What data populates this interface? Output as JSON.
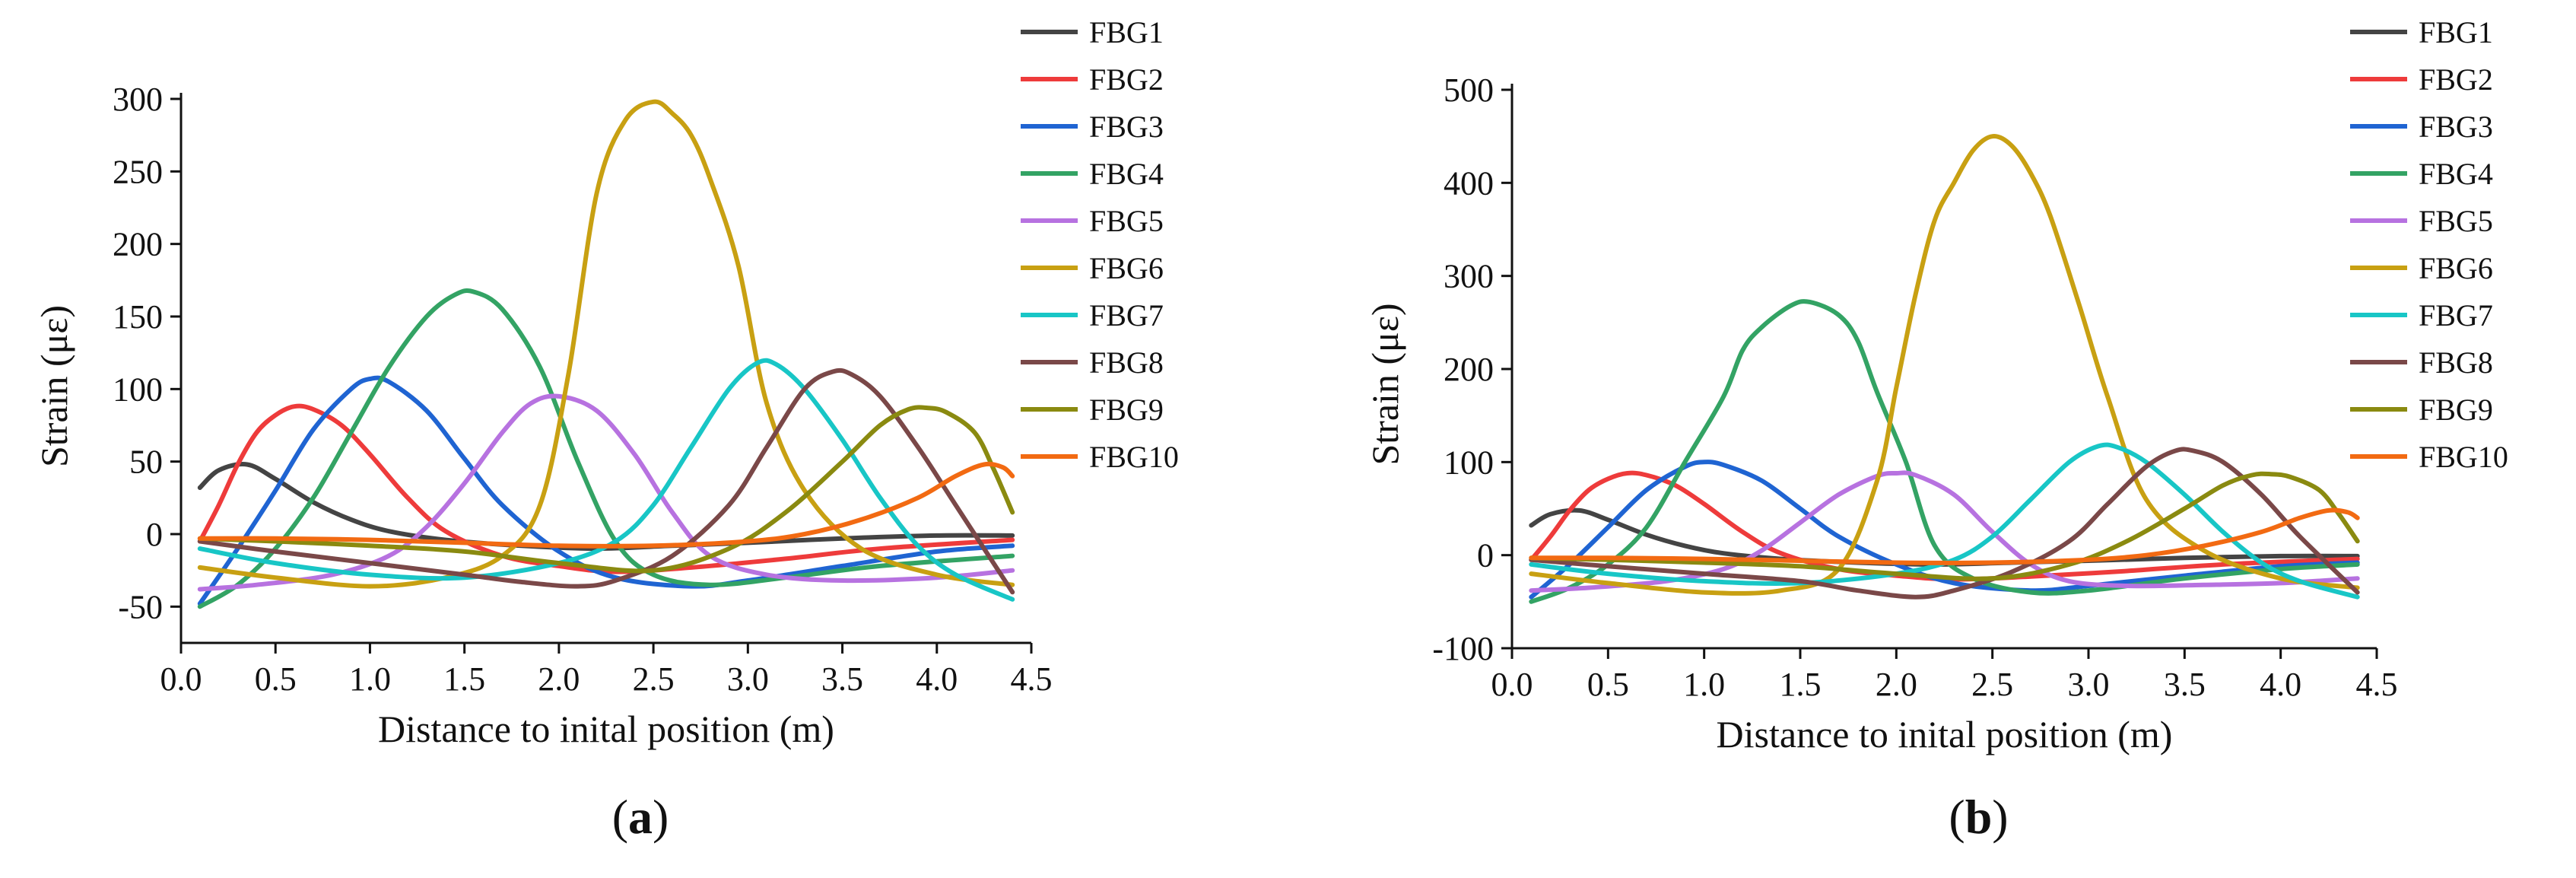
{
  "colors": {
    "FBG1": "#444444",
    "FBG2": "#ee3b3b",
    "FBG3": "#1f64d2",
    "FBG4": "#33a364",
    "FBG5": "#b772e0",
    "FBG6": "#c8a012",
    "FBG7": "#18c6c6",
    "FBG8": "#7a4848",
    "FBG9": "#8a8a10",
    "FBG10": "#f26a12"
  },
  "chart_data": [
    {
      "type": "line",
      "caption": "a",
      "xlabel": "Distance to inital position (m)",
      "ylabel": "Strain (με)",
      "xlim": [
        0.0,
        4.5
      ],
      "ylim": [
        -75,
        300
      ],
      "xticks": [
        "0.0",
        "0.5",
        "1.0",
        "1.5",
        "2.0",
        "2.5",
        "3.0",
        "3.5",
        "4.0",
        "4.5"
      ],
      "yticks": [
        "300",
        "250",
        "200",
        "150",
        "100",
        "50",
        "0",
        "-50"
      ],
      "series": [
        {
          "name": "FBG1",
          "x": [
            0.1,
            0.2,
            0.35,
            0.5,
            0.7,
            0.9,
            1.1,
            1.4,
            1.8,
            2.2,
            2.6,
            3.0,
            3.5,
            4.0,
            4.4
          ],
          "values": [
            32,
            44,
            48,
            38,
            22,
            10,
            2,
            -4,
            -8,
            -10,
            -8,
            -6,
            -3,
            -1,
            -1
          ]
        },
        {
          "name": "FBG2",
          "x": [
            0.1,
            0.2,
            0.3,
            0.4,
            0.5,
            0.6,
            0.7,
            0.85,
            1.0,
            1.2,
            1.4,
            1.7,
            2.0,
            2.3,
            2.7,
            3.2,
            3.7,
            4.4
          ],
          "values": [
            -5,
            20,
            48,
            70,
            82,
            88,
            86,
            75,
            55,
            25,
            2,
            -15,
            -22,
            -26,
            -23,
            -17,
            -10,
            -4
          ]
        },
        {
          "name": "FBG3",
          "x": [
            0.1,
            0.3,
            0.5,
            0.7,
            0.9,
            1.0,
            1.1,
            1.3,
            1.5,
            1.7,
            2.0,
            2.3,
            2.7,
            3.0,
            3.5,
            4.0,
            4.4
          ],
          "values": [
            -48,
            -10,
            30,
            72,
            100,
            107,
            105,
            85,
            52,
            20,
            -12,
            -30,
            -36,
            -32,
            -22,
            -12,
            -8
          ]
        },
        {
          "name": "FBG4",
          "x": [
            0.1,
            0.3,
            0.5,
            0.7,
            0.9,
            1.1,
            1.3,
            1.45,
            1.55,
            1.7,
            1.9,
            2.1,
            2.3,
            2.5,
            2.8,
            3.2,
            3.7,
            4.4
          ],
          "values": [
            -50,
            -35,
            -10,
            25,
            70,
            115,
            150,
            165,
            167,
            155,
            115,
            50,
            -5,
            -28,
            -35,
            -30,
            -22,
            -15
          ]
        },
        {
          "name": "FBG5",
          "x": [
            0.1,
            0.4,
            0.8,
            1.1,
            1.3,
            1.5,
            1.7,
            1.85,
            2.0,
            2.2,
            2.4,
            2.6,
            2.8,
            3.1,
            3.5,
            4.0,
            4.4
          ],
          "values": [
            -38,
            -35,
            -28,
            -15,
            5,
            35,
            70,
            90,
            95,
            85,
            55,
            15,
            -15,
            -28,
            -32,
            -30,
            -25
          ]
        },
        {
          "name": "FBG6",
          "x": [
            0.1,
            0.5,
            1.0,
            1.4,
            1.7,
            1.9,
            2.05,
            2.2,
            2.35,
            2.5,
            2.6,
            2.7,
            2.8,
            2.95,
            3.1,
            3.3,
            3.6,
            4.0,
            4.4
          ],
          "values": [
            -23,
            -30,
            -36,
            -30,
            -15,
            20,
            110,
            235,
            285,
            298,
            290,
            275,
            245,
            185,
            90,
            30,
            -10,
            -28,
            -35
          ]
        },
        {
          "name": "FBG7",
          "x": [
            0.1,
            0.5,
            1.0,
            1.5,
            2.0,
            2.3,
            2.5,
            2.7,
            2.9,
            3.05,
            3.15,
            3.3,
            3.5,
            3.7,
            3.9,
            4.1,
            4.4
          ],
          "values": [
            -10,
            -20,
            -28,
            -30,
            -20,
            -5,
            20,
            60,
            100,
            118,
            117,
            100,
            65,
            25,
            -8,
            -28,
            -45
          ]
        },
        {
          "name": "FBG8",
          "x": [
            0.1,
            0.5,
            1.0,
            1.5,
            1.8,
            2.1,
            2.3,
            2.6,
            2.9,
            3.1,
            3.3,
            3.45,
            3.55,
            3.7,
            3.9,
            4.1,
            4.4
          ],
          "values": [
            -5,
            -12,
            -20,
            -28,
            -33,
            -36,
            -32,
            -15,
            20,
            60,
            100,
            112,
            110,
            95,
            60,
            20,
            -40
          ]
        },
        {
          "name": "FBG9",
          "x": [
            0.1,
            0.5,
            1.0,
            1.5,
            2.0,
            2.5,
            2.9,
            3.2,
            3.5,
            3.7,
            3.85,
            3.95,
            4.05,
            4.2,
            4.3,
            4.4
          ],
          "values": [
            -3,
            -5,
            -8,
            -12,
            -20,
            -25,
            -10,
            15,
            50,
            75,
            86,
            87,
            84,
            70,
            45,
            15
          ]
        },
        {
          "name": "FBG10",
          "x": [
            0.1,
            0.5,
            1.0,
            1.5,
            2.0,
            2.5,
            3.0,
            3.3,
            3.6,
            3.9,
            4.1,
            4.25,
            4.35,
            4.4
          ],
          "values": [
            -3,
            -3,
            -4,
            -6,
            -8,
            -8,
            -5,
            0,
            10,
            25,
            40,
            48,
            46,
            40
          ]
        }
      ]
    },
    {
      "type": "line",
      "caption": "b",
      "xlabel": "Distance to inital position (m)",
      "ylabel": "Strain (με)",
      "xlim": [
        0.0,
        4.5
      ],
      "ylim": [
        -100,
        500
      ],
      "xticks": [
        "0.0",
        "0.5",
        "1.0",
        "1.5",
        "2.0",
        "2.5",
        "3.0",
        "3.5",
        "4.0",
        "4.5"
      ],
      "yticks": [
        "500",
        "400",
        "300",
        "200",
        "100",
        "0",
        "-100"
      ],
      "series": [
        {
          "name": "FBG1",
          "x": [
            0.1,
            0.2,
            0.35,
            0.5,
            0.7,
            0.9,
            1.1,
            1.4,
            1.8,
            2.2,
            2.6,
            3.0,
            3.5,
            4.0,
            4.4
          ],
          "values": [
            32,
            44,
            48,
            38,
            22,
            10,
            2,
            -4,
            -8,
            -10,
            -8,
            -6,
            -3,
            -1,
            -1
          ]
        },
        {
          "name": "FBG2",
          "x": [
            0.1,
            0.2,
            0.3,
            0.4,
            0.5,
            0.6,
            0.7,
            0.85,
            1.0,
            1.2,
            1.4,
            1.7,
            2.0,
            2.3,
            2.7,
            3.2,
            3.7,
            4.4
          ],
          "values": [
            -5,
            20,
            48,
            70,
            82,
            88,
            86,
            75,
            55,
            25,
            2,
            -15,
            -22,
            -26,
            -23,
            -17,
            -10,
            -4
          ]
        },
        {
          "name": "FBG3",
          "x": [
            0.1,
            0.3,
            0.5,
            0.7,
            0.9,
            1.0,
            1.1,
            1.3,
            1.5,
            1.7,
            2.0,
            2.3,
            2.7,
            3.0,
            3.5,
            4.0,
            4.4
          ],
          "values": [
            -45,
            -10,
            30,
            70,
            95,
            100,
            97,
            80,
            50,
            20,
            -10,
            -30,
            -38,
            -33,
            -22,
            -12,
            -8
          ]
        },
        {
          "name": "FBG4",
          "x": [
            0.1,
            0.3,
            0.5,
            0.7,
            0.9,
            1.1,
            1.2,
            1.3,
            1.45,
            1.55,
            1.7,
            1.8,
            1.9,
            2.05,
            2.2,
            2.4,
            2.7,
            3.0,
            3.5,
            4.0,
            4.4
          ],
          "values": [
            -50,
            -35,
            -10,
            30,
            100,
            170,
            220,
            245,
            268,
            272,
            258,
            230,
            175,
            100,
            10,
            -25,
            -40,
            -38,
            -25,
            -15,
            -10
          ]
        },
        {
          "name": "FBG5",
          "x": [
            0.1,
            0.4,
            0.8,
            1.1,
            1.3,
            1.5,
            1.7,
            1.9,
            2.0,
            2.1,
            2.3,
            2.5,
            2.7,
            2.9,
            3.2,
            3.6,
            4.0,
            4.4
          ],
          "values": [
            -38,
            -35,
            -28,
            -15,
            5,
            35,
            65,
            85,
            88,
            86,
            65,
            25,
            -10,
            -28,
            -33,
            -32,
            -30,
            -25
          ]
        },
        {
          "name": "FBG6",
          "x": [
            0.1,
            0.5,
            1.0,
            1.4,
            1.7,
            1.9,
            2.0,
            2.1,
            2.2,
            2.3,
            2.4,
            2.5,
            2.6,
            2.7,
            2.8,
            2.95,
            3.1,
            3.3,
            3.6,
            4.0,
            4.4
          ],
          "values": [
            -20,
            -30,
            -40,
            -38,
            -15,
            80,
            180,
            280,
            360,
            400,
            435,
            450,
            440,
            410,
            365,
            270,
            170,
            60,
            5,
            -25,
            -35
          ]
        },
        {
          "name": "FBG7",
          "x": [
            0.1,
            0.5,
            1.0,
            1.5,
            2.0,
            2.3,
            2.5,
            2.7,
            2.9,
            3.05,
            3.15,
            3.3,
            3.5,
            3.7,
            3.9,
            4.1,
            4.4
          ],
          "values": [
            -10,
            -20,
            -28,
            -30,
            -20,
            -5,
            20,
            60,
            100,
            117,
            116,
            100,
            65,
            25,
            -8,
            -28,
            -45
          ]
        },
        {
          "name": "FBG8",
          "x": [
            0.1,
            0.5,
            1.0,
            1.5,
            1.8,
            2.1,
            2.3,
            2.6,
            2.9,
            3.1,
            3.3,
            3.45,
            3.55,
            3.7,
            3.9,
            4.1,
            4.4
          ],
          "values": [
            -5,
            -12,
            -20,
            -28,
            -38,
            -45,
            -38,
            -18,
            15,
            55,
            95,
            112,
            112,
            100,
            65,
            20,
            -40
          ]
        },
        {
          "name": "FBG9",
          "x": [
            0.1,
            0.5,
            1.0,
            1.5,
            2.0,
            2.5,
            2.9,
            3.2,
            3.5,
            3.7,
            3.85,
            3.95,
            4.05,
            4.2,
            4.3,
            4.4
          ],
          "values": [
            -3,
            -5,
            -8,
            -12,
            -20,
            -25,
            -10,
            15,
            50,
            75,
            86,
            87,
            84,
            70,
            45,
            15
          ]
        },
        {
          "name": "FBG10",
          "x": [
            0.1,
            0.5,
            1.0,
            1.5,
            2.0,
            2.5,
            3.0,
            3.3,
            3.6,
            3.9,
            4.1,
            4.25,
            4.35,
            4.4
          ],
          "values": [
            -3,
            -3,
            -4,
            -6,
            -8,
            -8,
            -5,
            0,
            10,
            25,
            40,
            48,
            46,
            40
          ]
        }
      ]
    }
  ]
}
